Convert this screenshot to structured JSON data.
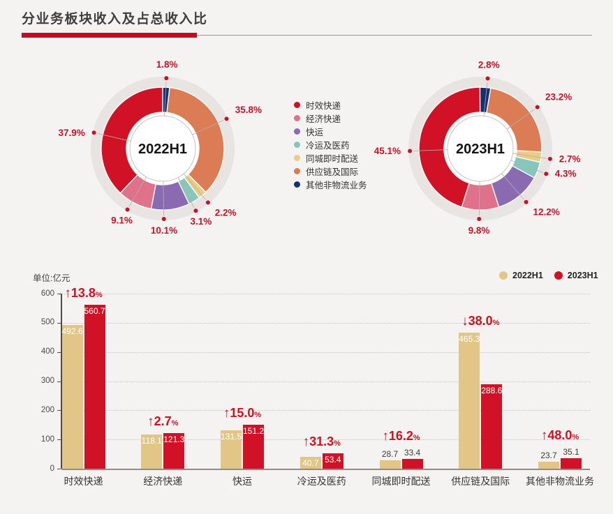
{
  "header": {
    "title": "分业务板块收入及占总收入比"
  },
  "colors": {
    "background": "#f4f3f1",
    "brand_red": "#d11226",
    "tan": "#e2c687",
    "pct_label_red": "#c31329",
    "underline_red": "#c20d20",
    "donut_disc": "#e7e4e2"
  },
  "legend": {
    "items": [
      {
        "label": "时效快递",
        "color": "#d11226"
      },
      {
        "label": "经济快递",
        "color": "#e0718a"
      },
      {
        "label": "快运",
        "color": "#8a6bb1"
      },
      {
        "label": "冷运及医药",
        "color": "#85c7bd"
      },
      {
        "label": "同城即时配送",
        "color": "#e8cd86"
      },
      {
        "label": "供应链及国际",
        "color": "#db7c55"
      },
      {
        "label": "其他非物流业务",
        "color": "#14326e"
      }
    ]
  },
  "chart_data": [
    {
      "type": "donut",
      "title": "2022H1",
      "value_suffix": "%",
      "slices": [
        {
          "name": "时效快递",
          "value": 37.9,
          "color": "#d11226"
        },
        {
          "name": "经济快递",
          "value": 9.1,
          "color": "#e0718a"
        },
        {
          "name": "快运",
          "value": 10.1,
          "color": "#8a6bb1"
        },
        {
          "name": "冷运及医药",
          "value": 3.1,
          "color": "#85c7bd"
        },
        {
          "name": "同城即时配送",
          "value": 2.2,
          "color": "#e8cd86"
        },
        {
          "name": "供应链及国际",
          "value": 35.8,
          "color": "#db7c55"
        },
        {
          "name": "其他非物流业务",
          "value": 1.8,
          "color": "#14326e"
        }
      ]
    },
    {
      "type": "donut",
      "title": "2023H1",
      "value_suffix": "%",
      "slices": [
        {
          "name": "时效快递",
          "value": 45.1,
          "color": "#d11226"
        },
        {
          "name": "经济快递",
          "value": 9.8,
          "color": "#e0718a"
        },
        {
          "name": "快运",
          "value": 12.2,
          "color": "#8a6bb1"
        },
        {
          "name": "冷运及医药",
          "value": 4.3,
          "color": "#85c7bd"
        },
        {
          "name": "同城即时配送",
          "value": 2.7,
          "color": "#e8cd86"
        },
        {
          "name": "供应链及国际",
          "value": 23.2,
          "color": "#db7c55"
        },
        {
          "name": "其他非物流业务",
          "value": 2.8,
          "color": "#14326e"
        }
      ]
    },
    {
      "type": "bar",
      "unit_label": "单位:亿元",
      "categories": [
        "时效快递",
        "经济快递",
        "快运",
        "冷运及医药",
        "同城即时配送",
        "供应链及国际",
        "其他非物流业务"
      ],
      "series": [
        {
          "name": "2022H1",
          "color": "#e2c687",
          "values": [
            492.6,
            118.1,
            131.5,
            40.7,
            28.7,
            465.3,
            23.7
          ]
        },
        {
          "name": "2023H1",
          "color": "#d11226",
          "values": [
            560.7,
            121.3,
            151.2,
            53.4,
            33.4,
            288.6,
            35.1
          ]
        }
      ],
      "changes": [
        {
          "dir": "up",
          "value": "13.8",
          "suffix": "%"
        },
        {
          "dir": "up",
          "value": "2.7",
          "suffix": "%"
        },
        {
          "dir": "up",
          "value": "15.0",
          "suffix": "%"
        },
        {
          "dir": "up",
          "value": "31.3",
          "suffix": "%"
        },
        {
          "dir": "up",
          "value": "16.2",
          "suffix": "%"
        },
        {
          "dir": "down",
          "value": "38.0",
          "suffix": "%"
        },
        {
          "dir": "up",
          "value": "48.0",
          "suffix": "%"
        }
      ],
      "ylim": [
        0,
        600
      ],
      "yticks": [
        0,
        100,
        200,
        300,
        400,
        500,
        600
      ],
      "grid": true,
      "legend_position": "top-right"
    }
  ]
}
